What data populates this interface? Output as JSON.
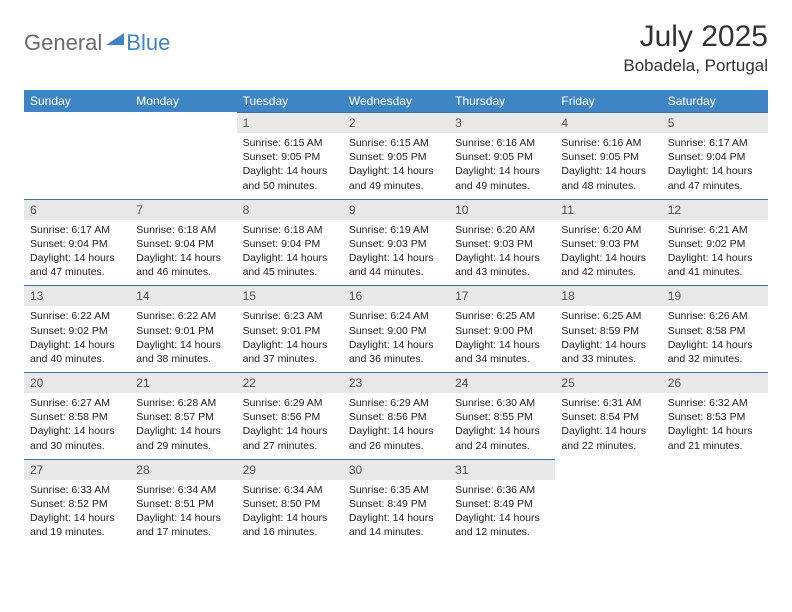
{
  "logo": {
    "part1": "General",
    "part2": "Blue"
  },
  "title": "July 2025",
  "location": "Bobadela, Portugal",
  "daysOfWeek": [
    "Sunday",
    "Monday",
    "Tuesday",
    "Wednesday",
    "Thursday",
    "Friday",
    "Saturday"
  ],
  "headerBg": "#3f84c4",
  "weeks": [
    [
      null,
      null,
      {
        "n": "1",
        "sr": "6:15 AM",
        "ss": "9:05 PM",
        "dl": "14 hours and 50 minutes."
      },
      {
        "n": "2",
        "sr": "6:15 AM",
        "ss": "9:05 PM",
        "dl": "14 hours and 49 minutes."
      },
      {
        "n": "3",
        "sr": "6:16 AM",
        "ss": "9:05 PM",
        "dl": "14 hours and 49 minutes."
      },
      {
        "n": "4",
        "sr": "6:16 AM",
        "ss": "9:05 PM",
        "dl": "14 hours and 48 minutes."
      },
      {
        "n": "5",
        "sr": "6:17 AM",
        "ss": "9:04 PM",
        "dl": "14 hours and 47 minutes."
      }
    ],
    [
      {
        "n": "6",
        "sr": "6:17 AM",
        "ss": "9:04 PM",
        "dl": "14 hours and 47 minutes."
      },
      {
        "n": "7",
        "sr": "6:18 AM",
        "ss": "9:04 PM",
        "dl": "14 hours and 46 minutes."
      },
      {
        "n": "8",
        "sr": "6:18 AM",
        "ss": "9:04 PM",
        "dl": "14 hours and 45 minutes."
      },
      {
        "n": "9",
        "sr": "6:19 AM",
        "ss": "9:03 PM",
        "dl": "14 hours and 44 minutes."
      },
      {
        "n": "10",
        "sr": "6:20 AM",
        "ss": "9:03 PM",
        "dl": "14 hours and 43 minutes."
      },
      {
        "n": "11",
        "sr": "6:20 AM",
        "ss": "9:03 PM",
        "dl": "14 hours and 42 minutes."
      },
      {
        "n": "12",
        "sr": "6:21 AM",
        "ss": "9:02 PM",
        "dl": "14 hours and 41 minutes."
      }
    ],
    [
      {
        "n": "13",
        "sr": "6:22 AM",
        "ss": "9:02 PM",
        "dl": "14 hours and 40 minutes."
      },
      {
        "n": "14",
        "sr": "6:22 AM",
        "ss": "9:01 PM",
        "dl": "14 hours and 38 minutes."
      },
      {
        "n": "15",
        "sr": "6:23 AM",
        "ss": "9:01 PM",
        "dl": "14 hours and 37 minutes."
      },
      {
        "n": "16",
        "sr": "6:24 AM",
        "ss": "9:00 PM",
        "dl": "14 hours and 36 minutes."
      },
      {
        "n": "17",
        "sr": "6:25 AM",
        "ss": "9:00 PM",
        "dl": "14 hours and 34 minutes."
      },
      {
        "n": "18",
        "sr": "6:25 AM",
        "ss": "8:59 PM",
        "dl": "14 hours and 33 minutes."
      },
      {
        "n": "19",
        "sr": "6:26 AM",
        "ss": "8:58 PM",
        "dl": "14 hours and 32 minutes."
      }
    ],
    [
      {
        "n": "20",
        "sr": "6:27 AM",
        "ss": "8:58 PM",
        "dl": "14 hours and 30 minutes."
      },
      {
        "n": "21",
        "sr": "6:28 AM",
        "ss": "8:57 PM",
        "dl": "14 hours and 29 minutes."
      },
      {
        "n": "22",
        "sr": "6:29 AM",
        "ss": "8:56 PM",
        "dl": "14 hours and 27 minutes."
      },
      {
        "n": "23",
        "sr": "6:29 AM",
        "ss": "8:56 PM",
        "dl": "14 hours and 26 minutes."
      },
      {
        "n": "24",
        "sr": "6:30 AM",
        "ss": "8:55 PM",
        "dl": "14 hours and 24 minutes."
      },
      {
        "n": "25",
        "sr": "6:31 AM",
        "ss": "8:54 PM",
        "dl": "14 hours and 22 minutes."
      },
      {
        "n": "26",
        "sr": "6:32 AM",
        "ss": "8:53 PM",
        "dl": "14 hours and 21 minutes."
      }
    ],
    [
      {
        "n": "27",
        "sr": "6:33 AM",
        "ss": "8:52 PM",
        "dl": "14 hours and 19 minutes."
      },
      {
        "n": "28",
        "sr": "6:34 AM",
        "ss": "8:51 PM",
        "dl": "14 hours and 17 minutes."
      },
      {
        "n": "29",
        "sr": "6:34 AM",
        "ss": "8:50 PM",
        "dl": "14 hours and 16 minutes."
      },
      {
        "n": "30",
        "sr": "6:35 AM",
        "ss": "8:49 PM",
        "dl": "14 hours and 14 minutes."
      },
      {
        "n": "31",
        "sr": "6:36 AM",
        "ss": "8:49 PM",
        "dl": "14 hours and 12 minutes."
      },
      null,
      null
    ]
  ],
  "labels": {
    "sunrise": "Sunrise:",
    "sunset": "Sunset:",
    "daylight": "Daylight:"
  }
}
